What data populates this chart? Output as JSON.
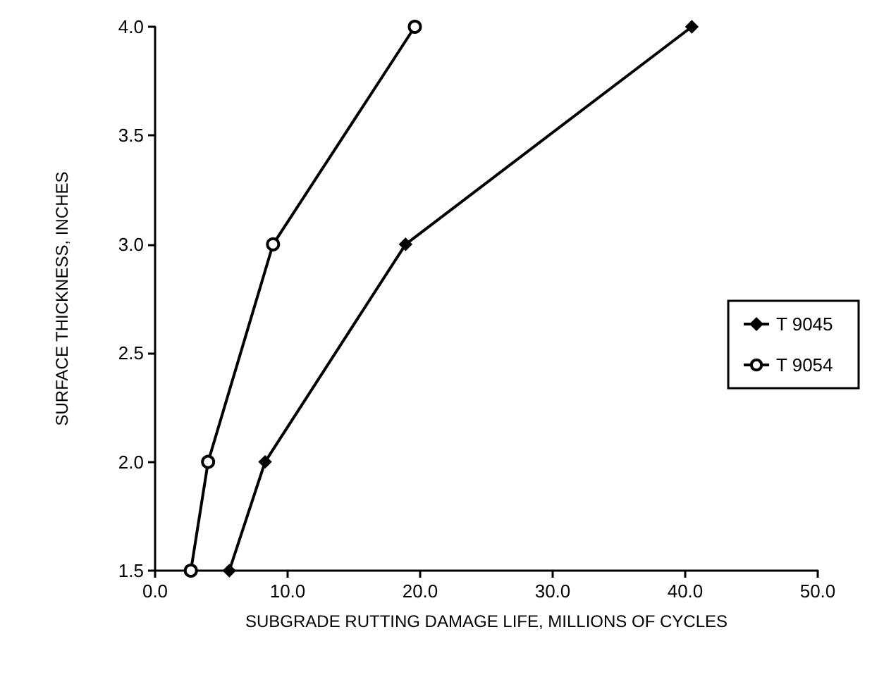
{
  "chart_data": {
    "type": "line",
    "xlabel": "SUBGRADE RUTTING DAMAGE LIFE, MILLIONS OF CYCLES",
    "ylabel": "SURFACE THICKNESS, INCHES",
    "series": [
      {
        "name": "T 9045",
        "color": "#000000",
        "marker": "diamond",
        "x": [
          5.6,
          8.3,
          18.9,
          40.5
        ],
        "values": [
          1.5,
          2.0,
          3.0,
          4.0
        ]
      },
      {
        "name": "T 9054",
        "color": "#000000",
        "marker": "circle",
        "x": [
          2.7,
          4.0,
          8.9,
          19.6
        ],
        "values": [
          1.5,
          2.0,
          3.0,
          4.0
        ]
      }
    ],
    "xlim": [
      0,
      50
    ],
    "xticks": [
      {
        "value": 0,
        "label": "0.0"
      },
      {
        "value": 10,
        "label": "10.0"
      },
      {
        "value": 20,
        "label": "20.0"
      },
      {
        "value": 30,
        "label": "30.0"
      },
      {
        "value": 40,
        "label": "40.0"
      },
      {
        "value": 50,
        "label": "50.0"
      }
    ],
    "ylim": [
      1.5,
      4.0
    ],
    "yticks": [
      {
        "value": 1.5,
        "label": "1.5"
      },
      {
        "value": 2.0,
        "label": "2.0"
      },
      {
        "value": 2.5,
        "label": "2.5"
      },
      {
        "value": 3.0,
        "label": "3.0"
      },
      {
        "value": 3.5,
        "label": "3.5"
      },
      {
        "value": 4.0,
        "label": "4.0"
      }
    ],
    "grid": false,
    "legend": "right",
    "line_style": "solid"
  }
}
